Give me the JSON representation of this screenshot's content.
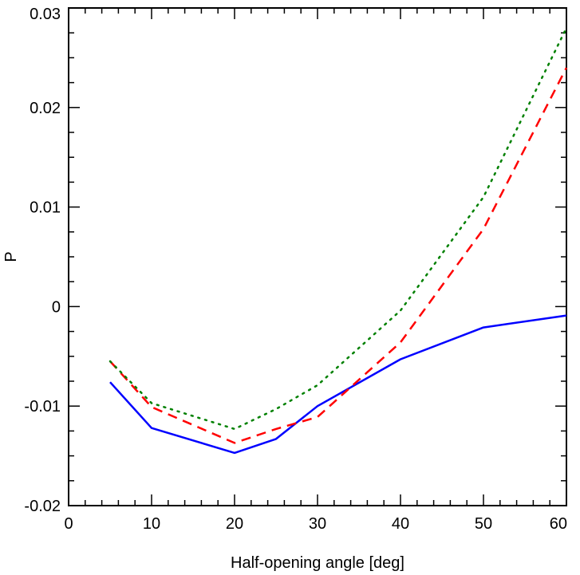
{
  "chart_data": {
    "type": "line",
    "title": "",
    "xlabel": "Half-opening angle [deg]",
    "ylabel": "P",
    "xlim": [
      0,
      60
    ],
    "ylim": [
      -0.02,
      0.03
    ],
    "grid": false,
    "x_ticks": [
      0,
      10,
      20,
      30,
      40,
      50,
      60
    ],
    "x_tick_labels": [
      "0",
      "10",
      "20",
      "30",
      "40",
      "50",
      "60"
    ],
    "y_ticks": [
      -0.02,
      -0.01,
      0,
      0.01,
      0.02,
      0.03
    ],
    "y_tick_labels": [
      "-0.02",
      "-0.01",
      "0",
      "0.01",
      "0.02",
      "0.03"
    ],
    "x_minor_step": 2,
    "y_minor_step": 0.0025,
    "series": [
      {
        "name": "solid",
        "color": "#0000ff",
        "style": "solid",
        "x": [
          5,
          10,
          20,
          25,
          30,
          40,
          50,
          60
        ],
        "y": [
          -0.0076,
          -0.0122,
          -0.0147,
          -0.0133,
          -0.01,
          -0.0053,
          -0.0021,
          -0.0009
        ]
      },
      {
        "name": "dashed",
        "color": "#ff0000",
        "style": "dashed",
        "x": [
          5,
          10,
          20,
          25,
          30,
          40,
          50,
          60
        ],
        "y": [
          -0.0055,
          -0.0101,
          -0.0137,
          -0.0123,
          -0.0111,
          -0.0036,
          0.0078,
          0.024
        ]
      },
      {
        "name": "dotted",
        "color": "#008000",
        "style": "dotted",
        "x": [
          5,
          10,
          20,
          25,
          30,
          40,
          50,
          60
        ],
        "y": [
          -0.0055,
          -0.0097,
          -0.0123,
          -0.0103,
          -0.0079,
          -0.0004,
          0.011,
          0.028
        ]
      }
    ]
  }
}
